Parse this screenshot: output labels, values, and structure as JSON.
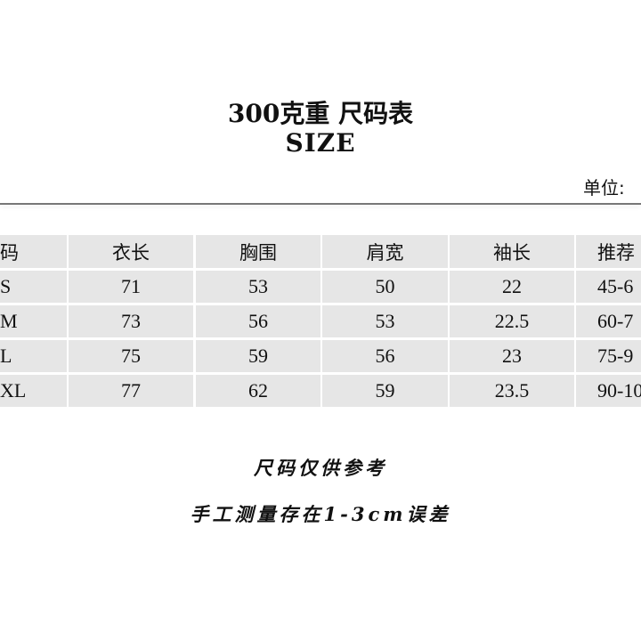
{
  "title": "300克重 尺码表",
  "subtitle": "SIZE",
  "unit_label": "单位:",
  "table": {
    "headers": [
      "码",
      "衣长",
      "胸围",
      "肩宽",
      "袖长",
      "推荐"
    ],
    "rows": [
      [
        "S",
        "71",
        "53",
        "50",
        "22",
        "45-6"
      ],
      [
        "M",
        "73",
        "56",
        "53",
        "22.5",
        "60-7"
      ],
      [
        "L",
        "75",
        "59",
        "56",
        "23",
        "75-9"
      ],
      [
        "XL",
        "77",
        "62",
        "59",
        "23.5",
        "90-10"
      ]
    ]
  },
  "notes": [
    "尺码仅供参考",
    "手工测量存在1-3cm误差"
  ]
}
